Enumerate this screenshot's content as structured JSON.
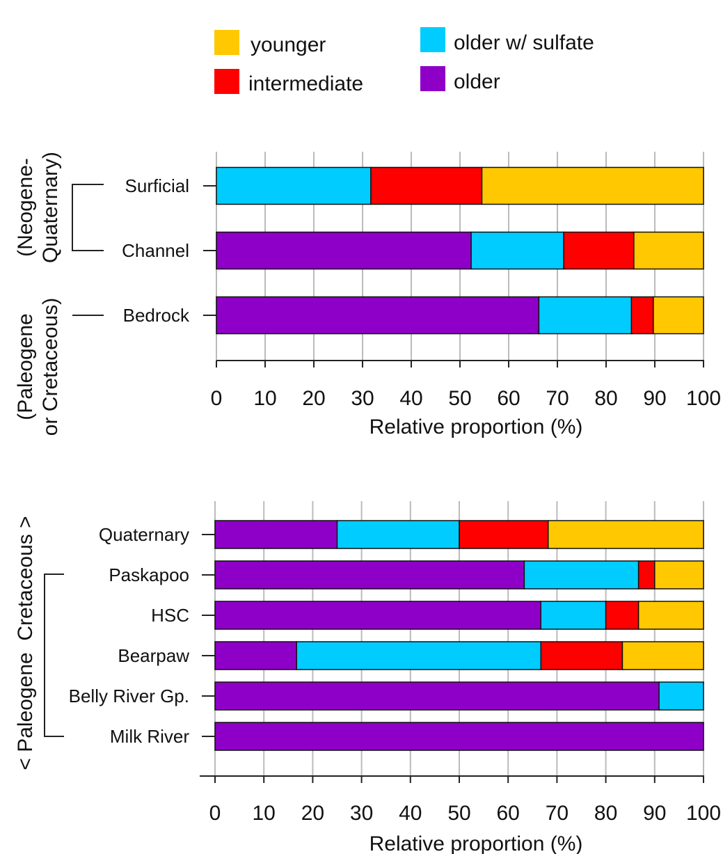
{
  "legend": {
    "items": [
      {
        "key": "younger",
        "label": "younger",
        "color": "#FFC800"
      },
      {
        "key": "intermediate",
        "label": "intermediate",
        "color": "#FF0000"
      },
      {
        "key": "older_sulfate",
        "label": "older w/ sulfate",
        "color": "#00CCFF"
      },
      {
        "key": "older",
        "label": "older",
        "color": "#8E00C8"
      }
    ]
  },
  "top_groups": {
    "neogene": "(Neogene-\nQuaternary)",
    "paleogene": "(Paleogene\nor Cretaceous)"
  },
  "bottom_groups": {
    "period_label": "< Paleogene  Cretaceous >"
  },
  "chart_data": [
    {
      "type": "bar",
      "orientation": "horizontal",
      "stacked": true,
      "title": "",
      "xlabel": "Relative proportion (%)",
      "ylabel": "",
      "xlim": [
        0,
        100
      ],
      "xticks": [
        0,
        10,
        20,
        30,
        40,
        50,
        60,
        70,
        80,
        90,
        100
      ],
      "grid": "vertical",
      "categories": [
        "Surficial",
        "Channel",
        "Bedrock"
      ],
      "series": [
        {
          "name": "older",
          "values": [
            0,
            52.3,
            66.2
          ]
        },
        {
          "name": "older w/ sulfate",
          "values": [
            31.7,
            19.0,
            19.0
          ]
        },
        {
          "name": "intermediate",
          "values": [
            22.8,
            14.4,
            4.5
          ]
        },
        {
          "name": "younger",
          "values": [
            45.5,
            14.3,
            10.3
          ]
        }
      ]
    },
    {
      "type": "bar",
      "orientation": "horizontal",
      "stacked": true,
      "title": "",
      "xlabel": "Relative proportion (%)",
      "ylabel": "",
      "xlim": [
        0,
        100
      ],
      "xticks": [
        0,
        10,
        20,
        30,
        40,
        50,
        60,
        70,
        80,
        90,
        100
      ],
      "grid": "vertical",
      "categories": [
        "Quaternary",
        "Paskapoo",
        "HSC",
        "Bearpaw",
        "Belly River Gp.",
        "Milk River"
      ],
      "series": [
        {
          "name": "older",
          "values": [
            25.0,
            63.3,
            66.7,
            16.7,
            90.9,
            100
          ]
        },
        {
          "name": "older w/ sulfate",
          "values": [
            25.0,
            23.4,
            13.3,
            50.0,
            9.1,
            0
          ]
        },
        {
          "name": "intermediate",
          "values": [
            18.2,
            3.3,
            6.7,
            16.7,
            0,
            0
          ]
        },
        {
          "name": "younger",
          "values": [
            31.8,
            10.0,
            13.3,
            16.6,
            0,
            0
          ]
        }
      ]
    }
  ]
}
